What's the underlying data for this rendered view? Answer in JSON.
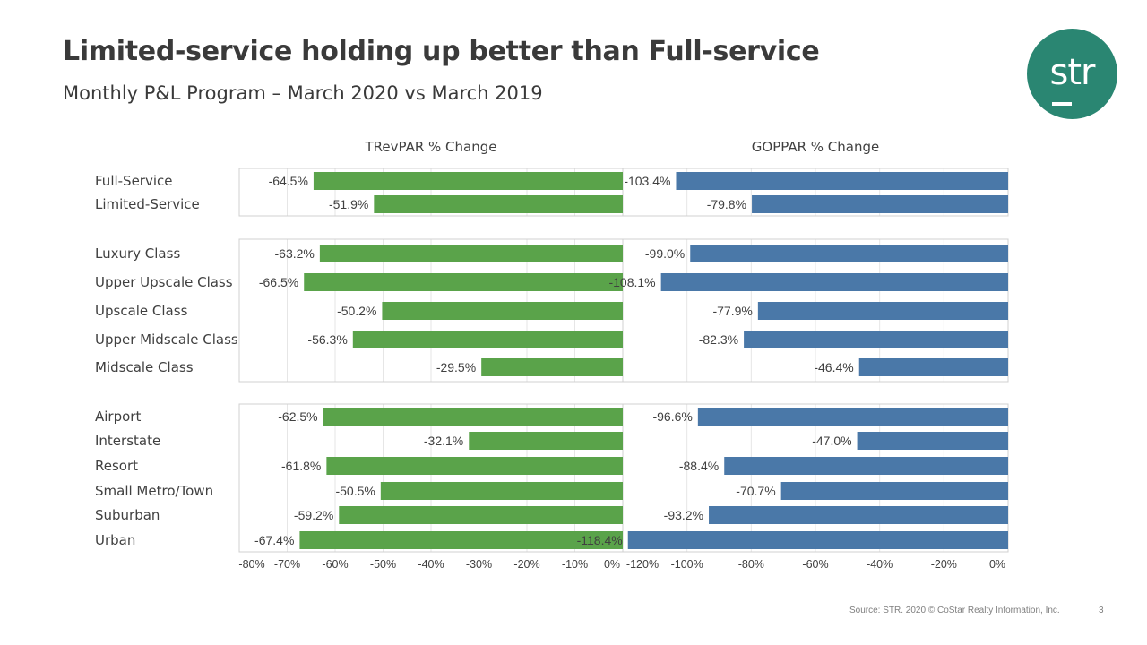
{
  "slide": {
    "title": "Limited-service holding up better than Full-service",
    "subtitle": "Monthly P&L Program – March 2020 vs March 2019",
    "logo_text": "str",
    "source": "Source: STR. 2020 © CoStar Realty Information, Inc.",
    "page_number": "3"
  },
  "colors": {
    "trevpar": "#5aa34a",
    "goppar": "#4a78a8",
    "logo": "#2a8672"
  },
  "chart_data": {
    "type": "bar",
    "orientation": "horizontal",
    "groups": [
      {
        "categories": [
          "Full-Service",
          "Limited-Service"
        ]
      },
      {
        "categories": [
          "Luxury Class",
          "Upper Upscale Class",
          "Upscale Class",
          "Upper Midscale Class",
          "Midscale Class"
        ]
      },
      {
        "categories": [
          "Airport",
          "Interstate",
          "Resort",
          "Small Metro/Town",
          "Suburban",
          "Urban"
        ]
      }
    ],
    "series": [
      {
        "name": "TRevPAR % Change",
        "title": "TRevPAR % Change",
        "values": [
          -64.5,
          -51.9,
          -63.2,
          -66.5,
          -50.2,
          -56.3,
          -29.5,
          -62.5,
          -32.1,
          -61.8,
          -50.5,
          -59.2,
          -67.4
        ],
        "labels": [
          "-64.5%",
          "-51.9%",
          "-63.2%",
          "-66.5%",
          "-50.2%",
          "-56.3%",
          "-29.5%",
          "-62.5%",
          "-32.1%",
          "-61.8%",
          "-50.5%",
          "-59.2%",
          "-67.4%"
        ],
        "xlim": [
          -80,
          0
        ],
        "ticks": [
          "-80%",
          "-70%",
          "-60%",
          "-50%",
          "-40%",
          "-30%",
          "-20%",
          "-10%",
          "0%"
        ]
      },
      {
        "name": "GOPPAR % Change",
        "title": "GOPPAR % Change",
        "values": [
          -103.4,
          -79.8,
          -99.0,
          -108.1,
          -77.9,
          -82.3,
          -46.4,
          -96.6,
          -47.0,
          -88.4,
          -70.7,
          -93.2,
          -118.4
        ],
        "labels": [
          "-103.4%",
          "-79.8%",
          "-99.0%",
          "-108.1%",
          "-77.9%",
          "-82.3%",
          "-46.4%",
          "-96.6%",
          "-47.0%",
          "-88.4%",
          "-70.7%",
          "-93.2%",
          "-118.4%"
        ],
        "xlim": [
          -120,
          0
        ],
        "ticks": [
          "-120%",
          "-100%",
          "-80%",
          "-60%",
          "-40%",
          "-20%",
          "0%"
        ]
      }
    ],
    "grid": true
  }
}
